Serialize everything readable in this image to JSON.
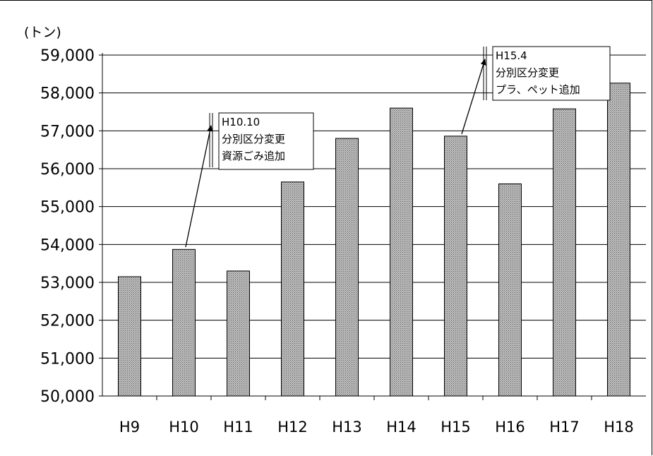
{
  "chart_data": {
    "type": "bar",
    "y_unit_label": "(トン)",
    "categories": [
      "H9",
      "H10",
      "H11",
      "H12",
      "H13",
      "H14",
      "H15",
      "H16",
      "H17",
      "H18"
    ],
    "values": [
      53150,
      53870,
      53300,
      55650,
      56800,
      57600,
      56860,
      55600,
      57580,
      58260
    ],
    "ylim": [
      50000,
      59000
    ],
    "yticks": [
      "50,000",
      "51,000",
      "52,000",
      "53,000",
      "54,000",
      "55,000",
      "56,000",
      "57,000",
      "58,000",
      "59,000"
    ],
    "grid": true,
    "bar_fill": "crosshatch-gray",
    "annotations": [
      {
        "category": "H10",
        "lines": [
          "H10.10",
          "分別区分変更",
          "資源ごみ追加"
        ]
      },
      {
        "category": "H15",
        "lines": [
          "H15.4",
          "分別区分変更",
          "プラ、ペット追加"
        ]
      }
    ]
  }
}
